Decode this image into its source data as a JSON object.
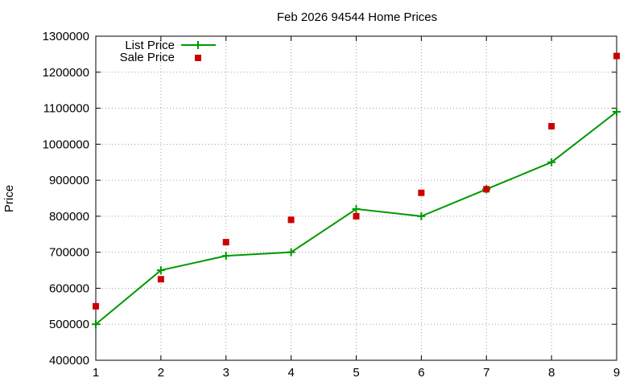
{
  "chart_data": {
    "type": "line",
    "title": "Feb 2026 94544 Home Prices",
    "xlabel": "",
    "ylabel": "Price",
    "xlim": [
      1,
      9
    ],
    "ylim": [
      400000,
      1300000
    ],
    "x_ticks": [
      "1",
      "2",
      "3",
      "4",
      "5",
      "6",
      "7",
      "8",
      "9"
    ],
    "y_ticks": [
      "400000",
      "500000",
      "600000",
      "700000",
      "800000",
      "900000",
      "1000000",
      "1100000",
      "1200000",
      "1300000"
    ],
    "grid": true,
    "legend_position": "top-left",
    "x": [
      1,
      2,
      3,
      4,
      5,
      6,
      7,
      8,
      9
    ],
    "series": [
      {
        "name": "List Price",
        "style": "line-with-plus-markers",
        "color": "#009900",
        "values": [
          500000,
          650000,
          690000,
          700000,
          820000,
          800000,
          875000,
          950000,
          1090000
        ]
      },
      {
        "name": "Sale Price",
        "style": "square-markers",
        "color": "#cc0000",
        "values": [
          550000,
          625000,
          728000,
          790000,
          800000,
          865000,
          875000,
          1050000,
          1245000
        ]
      }
    ]
  }
}
